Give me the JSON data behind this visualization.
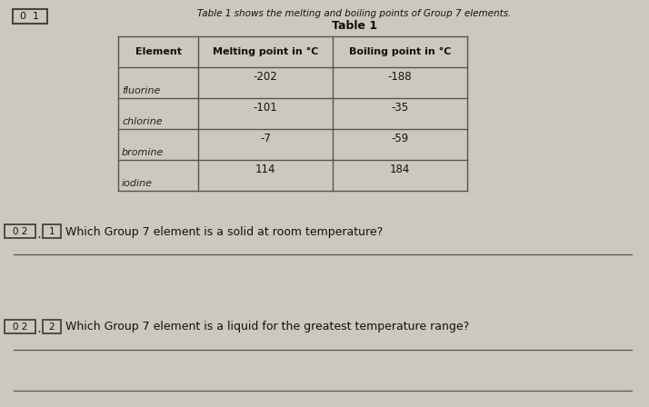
{
  "background_color": "#ccc8be",
  "intro_text": "Table 1 shows the melting and boiling points of Group 7 elements.",
  "table_title": "Table 1",
  "q0_box": "0  1",
  "table_headers": [
    "Element",
    "Melting point in °C",
    "Boiling point in °C"
  ],
  "table_rows": [
    [
      "fluorine",
      "-202",
      "-188"
    ],
    [
      "chlorine",
      "-101",
      "-35"
    ],
    [
      "bromine",
      "-7",
      "-59"
    ],
    [
      "iodine",
      "114",
      "184"
    ]
  ],
  "q1_box1": "0 2",
  "q1_box2": "1",
  "q1_text": "Which Group 7 element is a solid at room temperature?",
  "q2_box1": "0 2",
  "q2_box2": "2",
  "q2_text": "Which Group 7 element is a liquid for the greatest temperature range?"
}
